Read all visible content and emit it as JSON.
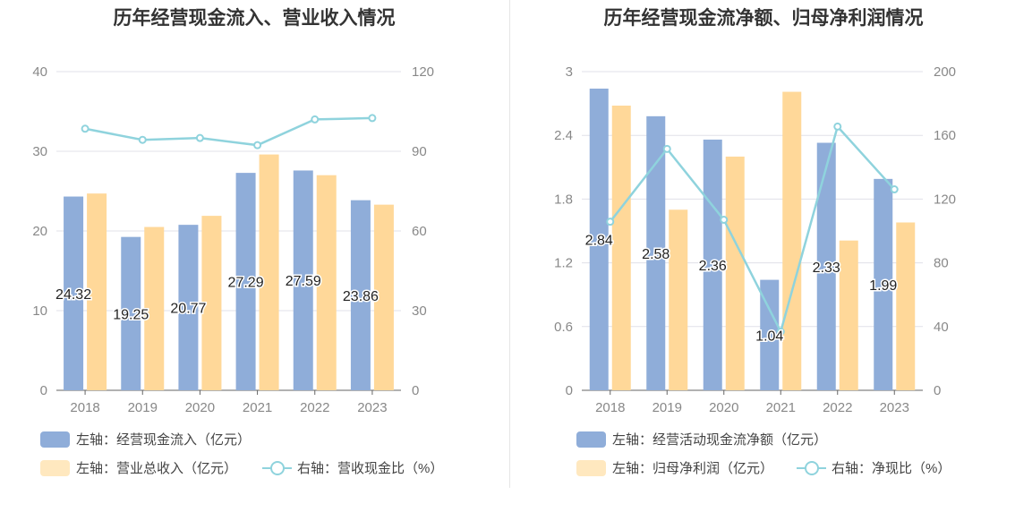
{
  "colors": {
    "bar_primary": "#8fadd9",
    "bar_secondary": "#ffd899",
    "line": "#8fd3dd",
    "grid": "#e0e0e8",
    "axis_text": "#888888"
  },
  "chart_data": [
    {
      "type": "bar",
      "title": "历年经营现金流入、营业收入情况",
      "categories": [
        "2018",
        "2019",
        "2020",
        "2021",
        "2022",
        "2023"
      ],
      "ylim_left": [
        0,
        40
      ],
      "yticks_left": [
        "0",
        "10",
        "20",
        "30",
        "40"
      ],
      "ylim_right": [
        0,
        120
      ],
      "yticks_right": [
        "0",
        "30",
        "60",
        "90",
        "120"
      ],
      "grid": true,
      "legend_position": "bottom",
      "series": [
        {
          "name": "左轴：经营现金流入（亿元）",
          "axis": "left",
          "kind": "bar",
          "values": [
            24.32,
            19.25,
            20.77,
            27.29,
            27.59,
            23.86
          ],
          "labels": [
            "24.32",
            "19.25",
            "20.77",
            "27.29",
            "27.59",
            "23.86"
          ]
        },
        {
          "name": "左轴：营业总收入（亿元）",
          "axis": "left",
          "kind": "bar",
          "values": [
            24.7,
            20.5,
            21.9,
            29.6,
            27.0,
            23.3
          ]
        },
        {
          "name": "右轴：营收现金比（%）",
          "axis": "right",
          "kind": "line",
          "values": [
            98.5,
            94.3,
            95.0,
            92.3,
            102.0,
            102.5
          ]
        }
      ]
    },
    {
      "type": "bar",
      "title": "历年经营现金流净额、归母净利润情况",
      "categories": [
        "2018",
        "2019",
        "2020",
        "2021",
        "2022",
        "2023"
      ],
      "ylim_left": [
        0,
        3
      ],
      "yticks_left": [
        "0",
        "0.6",
        "1.2",
        "1.8",
        "2.4",
        "3"
      ],
      "ylim_right": [
        0,
        200
      ],
      "yticks_right": [
        "0",
        "40",
        "80",
        "120",
        "160",
        "200"
      ],
      "grid": true,
      "legend_position": "bottom",
      "series": [
        {
          "name": "左轴：经营活动现金流净额（亿元）",
          "axis": "left",
          "kind": "bar",
          "values": [
            2.84,
            2.58,
            2.36,
            1.04,
            2.33,
            1.99
          ],
          "labels": [
            "2.84",
            "2.58",
            "2.36",
            "1.04",
            "2.33",
            "1.99"
          ]
        },
        {
          "name": "左轴：归母净利润（亿元）",
          "axis": "left",
          "kind": "bar",
          "values": [
            2.68,
            1.7,
            2.2,
            2.81,
            1.41,
            1.58
          ]
        },
        {
          "name": "右轴：净现比（%）",
          "axis": "right",
          "kind": "line",
          "values": [
            105.8,
            151.5,
            107.0,
            36.8,
            165.5,
            126.1
          ]
        }
      ]
    }
  ]
}
